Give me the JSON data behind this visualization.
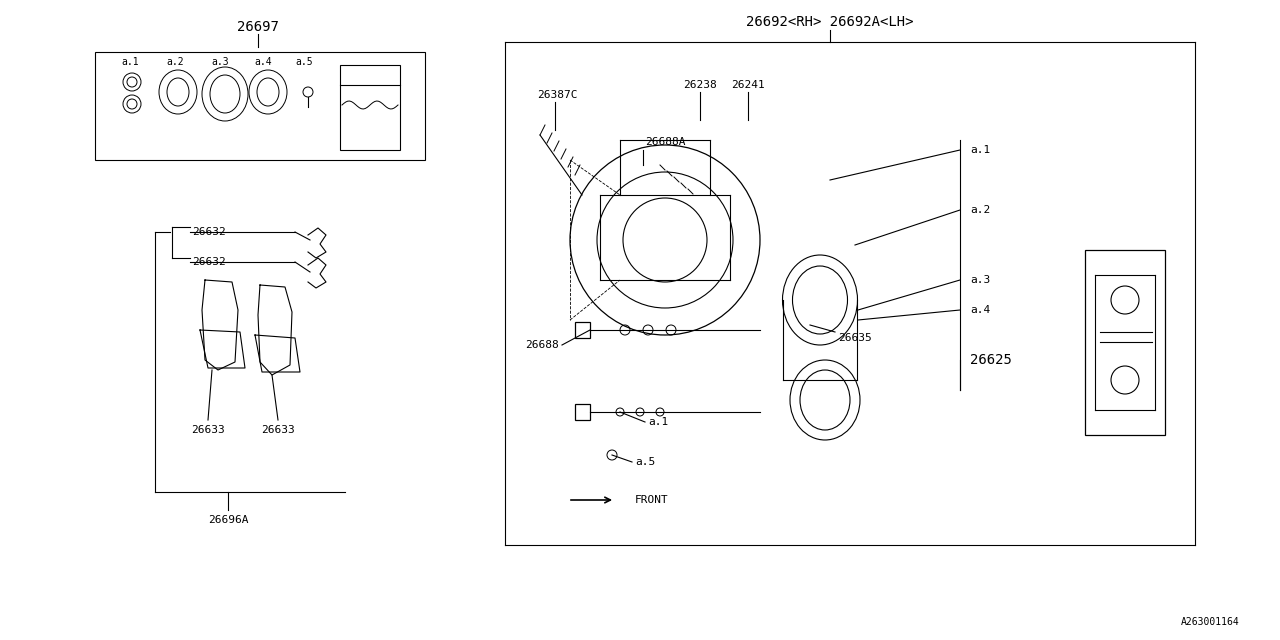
{
  "bg_color": "#ffffff",
  "line_color": "#000000",
  "font_size_small": 7,
  "font_size_med": 8,
  "font_size_large": 10,
  "title_ref": "A263001164",
  "part_26692": "26692<RH> 26692A<LH>",
  "part_26697": "26697",
  "part_26387C": "26387C",
  "part_26238": "26238",
  "part_26241": "26241",
  "part_26688A": "26688A",
  "part_26625": "26625",
  "part_26635": "26635",
  "part_26688": "26688",
  "part_26632a": "26632",
  "part_26632b": "26632",
  "part_26633a": "26633",
  "part_26633b": "26633",
  "part_26696A": "26696A",
  "sub_a1": "a.1",
  "sub_a2": "a.2",
  "sub_a3": "a.3",
  "sub_a4": "a.4",
  "sub_a5": "a.5",
  "front_label": "FRONT"
}
